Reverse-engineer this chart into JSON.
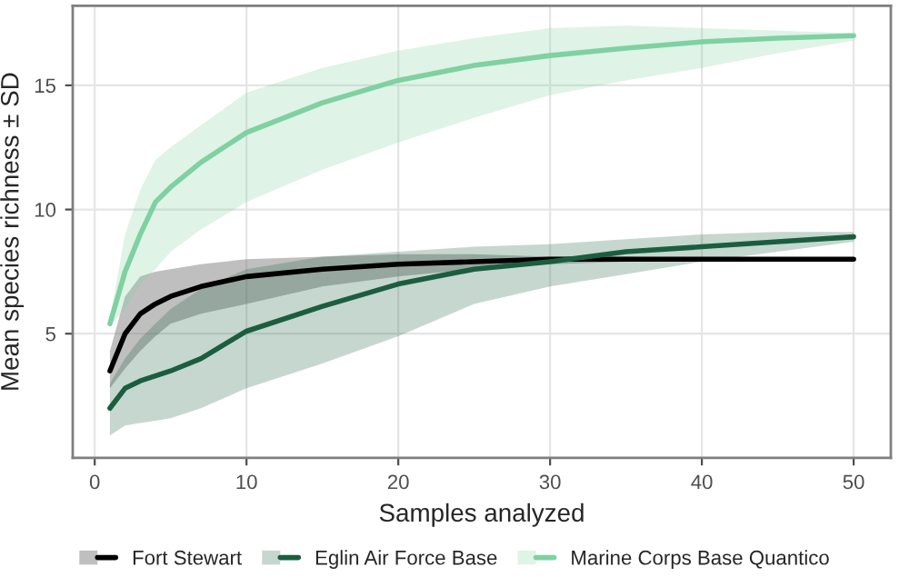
{
  "chart_data": {
    "type": "line",
    "xlabel": "Samples analyzed",
    "ylabel": "Mean species richness ± SD",
    "x": [
      1,
      2,
      3,
      4,
      5,
      7,
      10,
      15,
      20,
      25,
      30,
      35,
      40,
      45,
      50
    ],
    "series": [
      {
        "name": "Fort Stewart",
        "color": "#000000",
        "values": [
          3.5,
          5.0,
          5.8,
          6.2,
          6.5,
          6.9,
          7.3,
          7.6,
          7.8,
          7.9,
          8.0,
          8.0,
          8.0,
          8.0,
          8.0
        ],
        "upper": [
          4.3,
          6.5,
          7.3,
          7.5,
          7.6,
          7.8,
          8.0,
          8.1,
          8.2,
          8.2,
          8.1,
          8.1,
          8.0,
          8.0,
          8.0
        ],
        "lower": [
          2.8,
          3.6,
          4.3,
          4.9,
          5.4,
          5.8,
          6.2,
          6.9,
          7.3,
          7.6,
          7.8,
          7.9,
          8.0,
          8.0,
          8.0
        ]
      },
      {
        "name": "Eglin Air Force Base",
        "color": "#1b5e3f",
        "values": [
          2.0,
          2.8,
          3.1,
          3.3,
          3.5,
          4.0,
          5.1,
          6.1,
          7.0,
          7.6,
          7.9,
          8.3,
          8.5,
          8.7,
          8.9
        ],
        "upper": [
          3.0,
          4.0,
          4.8,
          5.4,
          6.0,
          6.8,
          7.6,
          8.1,
          8.3,
          8.5,
          8.6,
          8.8,
          9.0,
          9.1,
          9.1
        ],
        "lower": [
          0.9,
          1.3,
          1.4,
          1.5,
          1.6,
          2.0,
          2.8,
          3.8,
          4.9,
          6.2,
          6.9,
          7.4,
          7.9,
          8.3,
          8.7
        ]
      },
      {
        "name": "Marine Corps Base Quantico",
        "color": "#7fd1a0",
        "values": [
          5.4,
          7.5,
          9.0,
          10.3,
          10.9,
          11.9,
          13.1,
          14.3,
          15.2,
          15.8,
          16.2,
          16.5,
          16.75,
          16.9,
          17.0
        ],
        "upper": [
          5.6,
          9.0,
          10.8,
          12.0,
          12.5,
          13.4,
          14.7,
          15.7,
          16.4,
          16.9,
          17.3,
          17.4,
          17.3,
          17.2,
          17.1
        ],
        "lower": [
          5.3,
          6.0,
          7.0,
          7.6,
          8.3,
          9.2,
          10.3,
          11.6,
          12.7,
          13.7,
          14.6,
          15.2,
          15.7,
          16.3,
          16.8
        ]
      }
    ],
    "xlim": [
      -1.45,
      52.45
    ],
    "xticks": [
      0,
      10,
      20,
      30,
      40,
      50
    ],
    "ylim": [
      0,
      18.2
    ],
    "yticks": [
      5,
      10,
      15
    ],
    "grid": true,
    "legend": "bottom",
    "marker": "none",
    "line_style": "solid"
  }
}
